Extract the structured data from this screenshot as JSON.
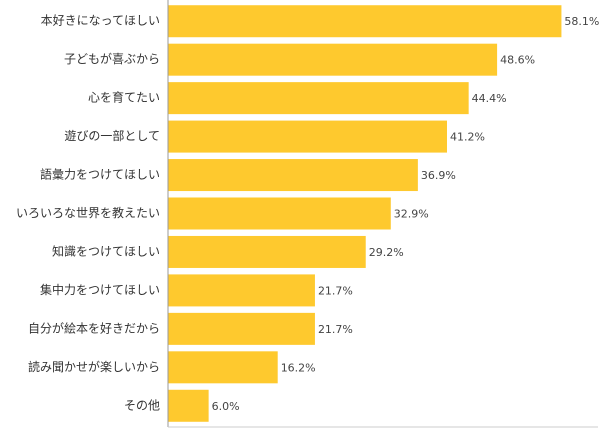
{
  "chart_data": {
    "type": "bar",
    "orientation": "horizontal",
    "categories": [
      "本好きになってほしい",
      "子どもが喜ぶから",
      "心を育てたい",
      "遊びの一部として",
      "語彙力をつけてほしい",
      "いろいろな世界を教えたい",
      "知識をつけてほしい",
      "集中力をつけてほしい",
      "自分が絵本を好きだから",
      "読み聞かせが楽しいから",
      "その他"
    ],
    "values": [
      58.1,
      48.6,
      44.4,
      41.2,
      36.9,
      32.9,
      29.2,
      21.7,
      21.7,
      16.2,
      6.0
    ],
    "value_labels": [
      "58.1%",
      "48.6%",
      "44.4%",
      "41.2%",
      "36.9%",
      "32.9%",
      "29.2%",
      "21.7%",
      "21.7%",
      "16.2%",
      "6.0%"
    ],
    "color": "#fec92e",
    "xlim": [
      0,
      63.5
    ]
  }
}
